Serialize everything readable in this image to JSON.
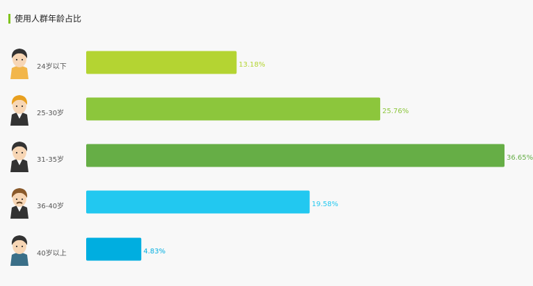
{
  "title": "使用人群年龄占比",
  "chart_data": {
    "type": "bar",
    "orientation": "horizontal",
    "title": "使用人群年龄占比",
    "categories": [
      "24岁以下",
      "25-30岁",
      "31-35岁",
      "36-40岁",
      "40岁以上"
    ],
    "values": [
      13.18,
      25.76,
      36.65,
      19.58,
      4.83
    ],
    "value_labels": [
      "13.18%",
      "25.76%",
      "36.65%",
      "19.58%",
      "4.83%"
    ],
    "colors": [
      "#b4d432",
      "#8cc63c",
      "#66ae46",
      "#22c8f0",
      "#00aee0"
    ],
    "avatar_icons": [
      "young-man-avatar-icon",
      "orange-hair-man-avatar-icon",
      "suit-man-avatar-icon",
      "mustache-man-avatar-icon",
      "older-man-avatar-icon"
    ],
    "xlim": [
      0,
      36.65
    ],
    "grid": false,
    "legend": "none"
  }
}
